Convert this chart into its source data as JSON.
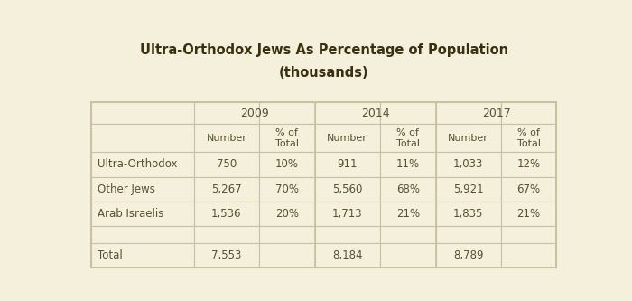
{
  "title_line1": "Ultra-Orthodox Jews As Percentage of Population",
  "title_line2": "(thousands)",
  "background_color": "#f5f0dc",
  "border_color": "#c8c0a0",
  "text_color": "#5a5030",
  "title_color": "#3a3010",
  "years": [
    "2009",
    "2014",
    "2017"
  ],
  "col_headers": [
    "Number",
    "% of\nTotal",
    "Number",
    "% of\nTotal",
    "Number",
    "% of\nTotal"
  ],
  "row_labels": [
    "Ultra-Orthodox",
    "Other Jews",
    "Arab Israelis",
    "",
    "Total"
  ],
  "table_data": [
    [
      "750",
      "10%",
      "911",
      "11%",
      "1,033",
      "12%"
    ],
    [
      "5,267",
      "70%",
      "5,560",
      "68%",
      "5,921",
      "67%"
    ],
    [
      "1,536",
      "20%",
      "1,713",
      "21%",
      "1,835",
      "21%"
    ],
    [
      "",
      "",
      "",
      "",
      "",
      ""
    ],
    [
      "7,553",
      "",
      "8,184",
      "",
      "8,789",
      ""
    ]
  ],
  "figsize": [
    7.0,
    3.33
  ],
  "dpi": 100
}
